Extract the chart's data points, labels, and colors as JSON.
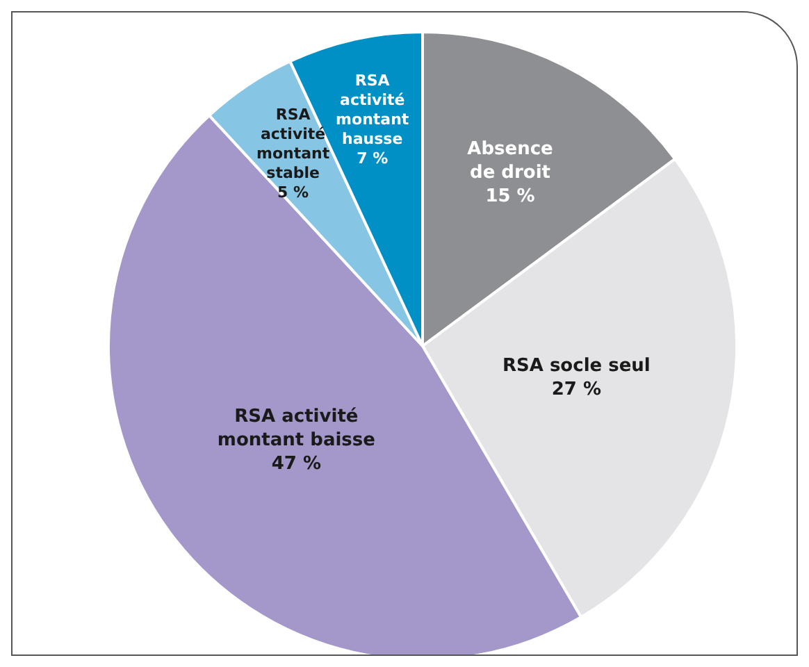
{
  "chart_data": {
    "type": "pie",
    "categories": [
      "Absence de droit",
      "RSA socle seul",
      "RSA activité montant baisse",
      "RSA activité montant stable",
      "RSA activité montant hausse"
    ],
    "values": [
      15,
      27,
      47,
      5,
      7
    ],
    "value_labels": [
      "15 %",
      "27 %",
      "47 %",
      "5 %",
      "7 %"
    ],
    "colors": [
      "#8e8f92",
      "#e4e4e6",
      "#a497c9",
      "#86c5e3",
      "#0090c6"
    ],
    "legend": false
  }
}
